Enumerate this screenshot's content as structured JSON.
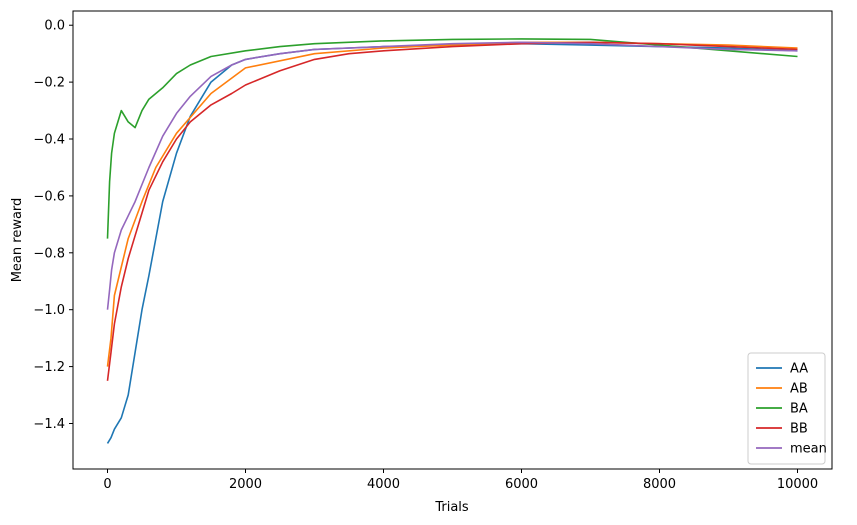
{
  "chart_data": {
    "type": "line",
    "title": "",
    "xlabel": "Trials",
    "ylabel": "Mean reward",
    "xlim": [
      -500,
      10500
    ],
    "ylim": [
      -1.56,
      0.05
    ],
    "x_ticks": [
      0,
      2000,
      4000,
      6000,
      8000,
      10000
    ],
    "x_tick_labels": [
      "0",
      "2000",
      "4000",
      "6000",
      "8000",
      "10000"
    ],
    "y_ticks": [
      -1.4,
      -1.2,
      -1.0,
      -0.8,
      -0.6,
      -0.4,
      -0.2,
      0.0
    ],
    "y_tick_labels": [
      "−1.4",
      "−1.2",
      "−1.0",
      "−0.8",
      "−0.6",
      "−0.4",
      "−0.2",
      "0.0"
    ],
    "grid": false,
    "legend_position": "lower-right",
    "series": [
      {
        "name": "AA",
        "color": "#1f77b4",
        "x": [
          0,
          50,
          100,
          200,
          300,
          400,
          500,
          600,
          700,
          800,
          1000,
          1200,
          1500,
          1800,
          2000,
          2500,
          3000,
          3500,
          4000,
          5000,
          6000,
          7000,
          8000,
          9000,
          10000
        ],
        "y": [
          -1.47,
          -1.45,
          -1.42,
          -1.38,
          -1.3,
          -1.15,
          -1.0,
          -0.88,
          -0.75,
          -0.62,
          -0.45,
          -0.32,
          -0.2,
          -0.14,
          -0.12,
          -0.1,
          -0.085,
          -0.08,
          -0.075,
          -0.07,
          -0.065,
          -0.07,
          -0.075,
          -0.08,
          -0.09
        ]
      },
      {
        "name": "AB",
        "color": "#ff7f0e",
        "x": [
          0,
          50,
          100,
          200,
          300,
          500,
          700,
          1000,
          1500,
          2000,
          3000,
          4000,
          5000,
          6000,
          7000,
          8000,
          9000,
          10000
        ],
        "y": [
          -1.2,
          -1.1,
          -0.95,
          -0.85,
          -0.75,
          -0.62,
          -0.5,
          -0.38,
          -0.24,
          -0.15,
          -0.1,
          -0.08,
          -0.07,
          -0.06,
          -0.06,
          -0.065,
          -0.07,
          -0.08
        ]
      },
      {
        "name": "BA",
        "color": "#2ca02c",
        "x": [
          0,
          30,
          60,
          100,
          200,
          300,
          400,
          500,
          600,
          800,
          1000,
          1200,
          1500,
          2000,
          2500,
          3000,
          4000,
          5000,
          6000,
          7000,
          8000,
          9000,
          10000
        ],
        "y": [
          -0.75,
          -0.55,
          -0.45,
          -0.38,
          -0.3,
          -0.34,
          -0.36,
          -0.3,
          -0.26,
          -0.22,
          -0.17,
          -0.14,
          -0.11,
          -0.09,
          -0.075,
          -0.065,
          -0.055,
          -0.05,
          -0.048,
          -0.05,
          -0.07,
          -0.09,
          -0.11
        ]
      },
      {
        "name": "BB",
        "color": "#d62728",
        "x": [
          0,
          50,
          100,
          200,
          300,
          400,
          500,
          600,
          800,
          1000,
          1200,
          1500,
          1800,
          2000,
          2500,
          3000,
          3500,
          4000,
          5000,
          6000,
          7000,
          8000,
          9000,
          10000
        ],
        "y": [
          -1.25,
          -1.15,
          -1.05,
          -0.92,
          -0.82,
          -0.74,
          -0.66,
          -0.58,
          -0.48,
          -0.4,
          -0.34,
          -0.28,
          -0.24,
          -0.21,
          -0.16,
          -0.12,
          -0.1,
          -0.09,
          -0.075,
          -0.065,
          -0.06,
          -0.065,
          -0.075,
          -0.085
        ]
      },
      {
        "name": "mean",
        "color": "#9467bd",
        "x": [
          0,
          30,
          60,
          100,
          200,
          300,
          400,
          500,
          600,
          800,
          1000,
          1200,
          1500,
          1800,
          2000,
          2500,
          3000,
          4000,
          5000,
          6000,
          7000,
          8000,
          9000,
          10000
        ],
        "y": [
          -1.0,
          -0.93,
          -0.86,
          -0.8,
          -0.72,
          -0.67,
          -0.62,
          -0.56,
          -0.5,
          -0.39,
          -0.31,
          -0.25,
          -0.18,
          -0.14,
          -0.12,
          -0.1,
          -0.085,
          -0.075,
          -0.065,
          -0.06,
          -0.065,
          -0.075,
          -0.085,
          -0.09
        ]
      }
    ]
  }
}
